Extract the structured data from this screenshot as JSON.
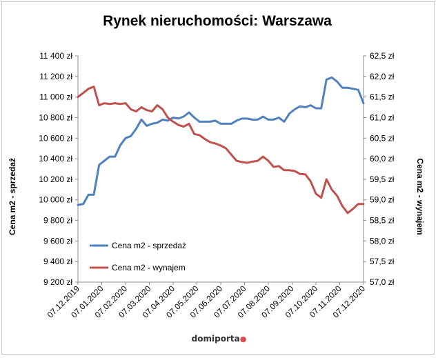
{
  "brand": {
    "name": "domiporta",
    "pin_color": "#e5484d"
  },
  "chart_data": {
    "type": "line",
    "title": "Rynek nieruchomości: Warszawa",
    "ylabel_left": "Cena m2  - sprzedaż",
    "ylabel_right": "Cena m2  - wynajem",
    "x_tick_labels": [
      "07.12.2019",
      "07.01.2020",
      "07.02.2020",
      "07.03.2020",
      "07.04.2020",
      "07.05.2020",
      "07.06.2020",
      "07.07.2020",
      "07.08.2020",
      "07.09.2020",
      "07.10.2020",
      "07.11.2020",
      "07.12.2020"
    ],
    "left_axis": {
      "min": 9200,
      "max": 11400,
      "step": 200,
      "tick_labels": [
        "9 200 zł",
        "9 400 zł",
        "9 600 zł",
        "9 800 zł",
        "10 000 zł",
        "10 200 zł",
        "10 400 zł",
        "10 600 zł",
        "10 800 zł",
        "11 000 zł",
        "11 200 zł",
        "11 400 zł"
      ]
    },
    "right_axis": {
      "min": 57.0,
      "max": 62.5,
      "step": 0.5,
      "tick_labels": [
        "57,0 zł",
        "57,5 zł",
        "58,0 zł",
        "58,5 zł",
        "59,0 zł",
        "59,5 zł",
        "60,0 zł",
        "60,5 zł",
        "61,0 zł",
        "61,5 zł",
        "62,0 zł",
        "62,5 zł"
      ]
    },
    "legend_position": "lower-left",
    "series": [
      {
        "name": "Cena m2  - sprzedaż",
        "axis": "left",
        "color": "#4f81bd",
        "values": [
          9950,
          9960,
          10050,
          10050,
          10340,
          10380,
          10420,
          10420,
          10530,
          10600,
          10620,
          10690,
          10780,
          10720,
          10740,
          10750,
          10780,
          10770,
          10800,
          10790,
          10810,
          10850,
          10800,
          10760,
          10760,
          10760,
          10770,
          10740,
          10740,
          10740,
          10770,
          10790,
          10790,
          10780,
          10780,
          10810,
          10780,
          10780,
          10800,
          10760,
          10840,
          10880,
          10910,
          10900,
          10920,
          10890,
          10890,
          11170,
          11190,
          11150,
          11090,
          11090,
          11080,
          11070,
          10940
        ]
      },
      {
        "name": "Cena m2  - wynajem",
        "axis": "right",
        "color": "#c0504d",
        "values": [
          61.5,
          61.6,
          61.7,
          61.75,
          61.3,
          61.35,
          61.33,
          61.35,
          61.33,
          61.35,
          61.2,
          61.15,
          61.25,
          61.18,
          61.15,
          61.3,
          61.2,
          61.0,
          60.9,
          60.82,
          60.78,
          60.85,
          60.6,
          60.57,
          60.48,
          60.4,
          60.37,
          60.32,
          60.25,
          60.1,
          59.95,
          59.92,
          59.9,
          59.93,
          59.95,
          60.05,
          59.95,
          59.8,
          59.82,
          59.72,
          59.72,
          59.7,
          59.63,
          59.62,
          59.45,
          59.15,
          59.05,
          59.5,
          59.25,
          59.1,
          58.85,
          58.68,
          58.78,
          58.9,
          58.9
        ]
      }
    ],
    "grid": false
  }
}
